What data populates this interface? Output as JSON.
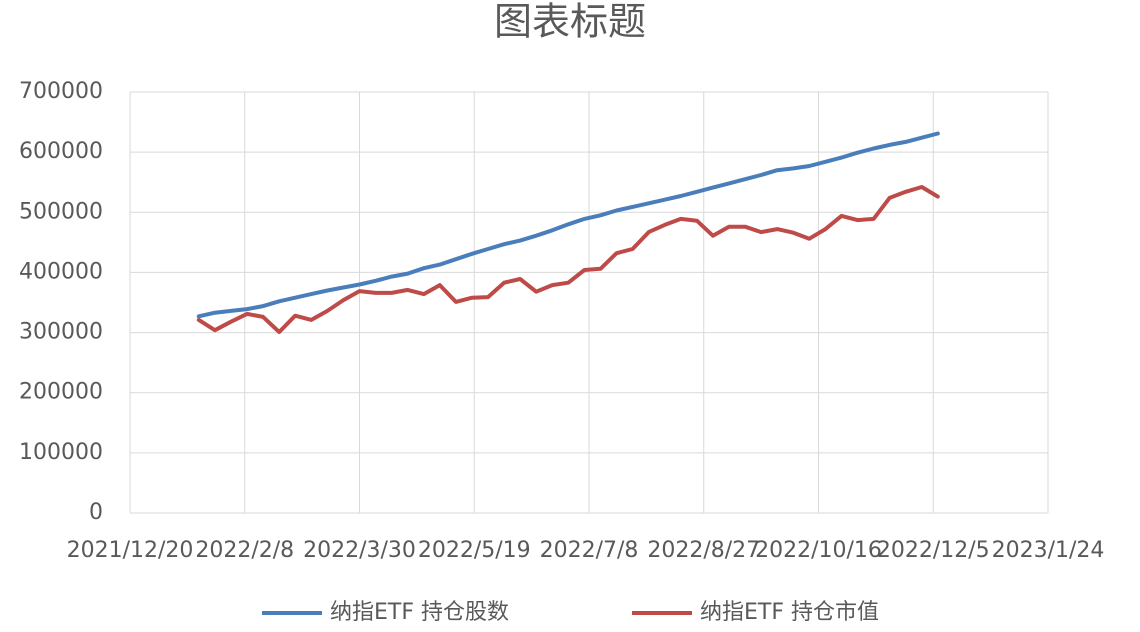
{
  "chart_data": {
    "type": "line",
    "title": "图表标题",
    "x": [
      "2022/1/19",
      "2022/1/26",
      "2022/2/2",
      "2022/2/9",
      "2022/2/16",
      "2022/2/23",
      "2022/3/2",
      "2022/3/9",
      "2022/3/16",
      "2022/3/23",
      "2022/3/30",
      "2022/4/6",
      "2022/4/13",
      "2022/4/20",
      "2022/4/27",
      "2022/5/4",
      "2022/5/11",
      "2022/5/18",
      "2022/5/25",
      "2022/6/1",
      "2022/6/8",
      "2022/6/15",
      "2022/6/22",
      "2022/6/29",
      "2022/7/6",
      "2022/7/13",
      "2022/7/20",
      "2022/7/27",
      "2022/8/3",
      "2022/8/10",
      "2022/8/17",
      "2022/8/24",
      "2022/8/31",
      "2022/9/7",
      "2022/9/14",
      "2022/9/21",
      "2022/9/28",
      "2022/10/5",
      "2022/10/12",
      "2022/10/19",
      "2022/10/26",
      "2022/11/2",
      "2022/11/9",
      "2022/11/16",
      "2022/11/23",
      "2022/11/30",
      "2022/12/7"
    ],
    "series": [
      {
        "name": "纳指ETF 持仓股数",
        "color": "#4a7ebb",
        "values": [
          327000,
          333000,
          336000,
          339000,
          344000,
          352000,
          358000,
          364000,
          370000,
          375000,
          380000,
          386000,
          393000,
          398000,
          407000,
          413000,
          422000,
          431000,
          439000,
          447000,
          453000,
          461000,
          470000,
          480000,
          489000,
          495000,
          503000,
          509000,
          515000,
          521000,
          527000,
          534000,
          541000,
          548000,
          555000,
          562000,
          570000,
          573000,
          577000,
          584000,
          591000,
          599000,
          606000,
          612000,
          617000,
          624000,
          631000
        ]
      },
      {
        "name": "纳指ETF 持仓市值",
        "color": "#be4b48",
        "values": [
          321000,
          304000,
          318000,
          331000,
          326000,
          301000,
          328000,
          321000,
          336000,
          354000,
          369000,
          366000,
          366000,
          371000,
          364000,
          379000,
          351000,
          358000,
          359000,
          383000,
          389000,
          368000,
          379000,
          383000,
          404000,
          406000,
          432000,
          439000,
          467000,
          479000,
          489000,
          486000,
          461000,
          476000,
          476000,
          467000,
          472000,
          466000,
          456000,
          472000,
          494000,
          487000,
          489000,
          524000,
          534000,
          542000,
          526000
        ]
      }
    ],
    "xlim": [
      "2021/12/20",
      "2023/1/24"
    ],
    "xticks": [
      "2021/12/20",
      "2022/2/8",
      "2022/3/30",
      "2022/5/19",
      "2022/7/8",
      "2022/8/27",
      "2022/10/16",
      "2022/12/5",
      "2023/1/24"
    ],
    "ylim": [
      0,
      700000
    ],
    "yticks": [
      0,
      100000,
      200000,
      300000,
      400000,
      500000,
      600000,
      700000
    ],
    "grid": true,
    "legend": "bottom"
  }
}
